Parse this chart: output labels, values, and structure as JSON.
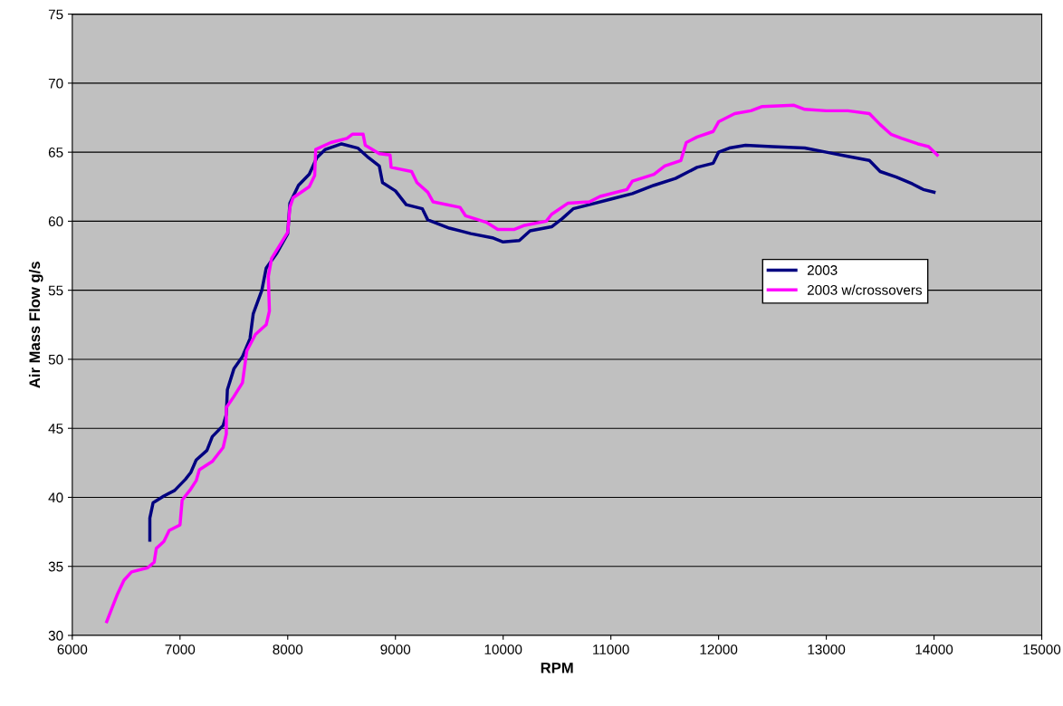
{
  "chart_data": {
    "type": "line",
    "xlabel": "RPM",
    "ylabel": "Air Mass Flow g/s",
    "xlim": [
      6000,
      15000
    ],
    "xticks": [
      6000,
      7000,
      8000,
      9000,
      10000,
      11000,
      12000,
      13000,
      14000,
      15000
    ],
    "ylim": [
      30,
      75
    ],
    "yticks": [
      30,
      35,
      40,
      45,
      50,
      55,
      60,
      65,
      70,
      75
    ],
    "grid": "y",
    "legend": "right",
    "marker": "none",
    "line_style": "solid",
    "series": [
      {
        "name": "2003",
        "color": "#000080",
        "x": [
          6720,
          6720,
          6750,
          6850,
          6950,
          7050,
          7100,
          7150,
          7250,
          7300,
          7400,
          7430,
          7440,
          7500,
          7580,
          7650,
          7680,
          7760,
          7800,
          7900,
          8000,
          8020,
          8100,
          8200,
          8270,
          8350,
          8500,
          8650,
          8750,
          8850,
          8880,
          9000,
          9100,
          9250,
          9300,
          9500,
          9700,
          9900,
          10000,
          10150,
          10250,
          10450,
          10550,
          10650,
          10800,
          11000,
          11200,
          11400,
          11600,
          11800,
          11950,
          12000,
          12100,
          12250,
          12500,
          12800,
          13000,
          13200,
          13400,
          13500,
          13650,
          13800,
          13900,
          14000
        ],
        "values": [
          36.9,
          38.5,
          39.6,
          40.1,
          40.5,
          41.3,
          41.8,
          42.7,
          43.4,
          44.4,
          45.2,
          46.0,
          47.8,
          49.3,
          50.2,
          51.5,
          53.3,
          55.0,
          56.6,
          57.7,
          59.1,
          61.3,
          62.6,
          63.4,
          64.6,
          65.2,
          65.6,
          65.3,
          64.6,
          64.0,
          62.8,
          62.2,
          61.2,
          60.9,
          60.1,
          59.5,
          59.1,
          58.8,
          58.5,
          58.6,
          59.3,
          59.6,
          60.2,
          60.9,
          61.2,
          61.6,
          62.0,
          62.6,
          63.1,
          63.9,
          64.2,
          65.0,
          65.3,
          65.5,
          65.4,
          65.3,
          65.0,
          64.7,
          64.4,
          63.6,
          63.2,
          62.7,
          62.3,
          62.1
        ]
      },
      {
        "name": "2003 w/crossovers",
        "color": "#ff00ff",
        "x": [
          6320,
          6370,
          6420,
          6480,
          6550,
          6700,
          6760,
          6780,
          6850,
          6900,
          7000,
          7020,
          7100,
          7150,
          7180,
          7300,
          7400,
          7430,
          7430,
          7500,
          7580,
          7620,
          7700,
          7800,
          7830,
          7820,
          7850,
          8000,
          8020,
          8050,
          8200,
          8250,
          8260,
          8400,
          8550,
          8600,
          8700,
          8720,
          8850,
          8950,
          8960,
          9150,
          9200,
          9300,
          9350,
          9600,
          9650,
          9850,
          9950,
          10100,
          10200,
          10400,
          10450,
          10600,
          10800,
          10900,
          11150,
          11200,
          11400,
          11500,
          11650,
          11700,
          11800,
          11950,
          12000,
          12150,
          12300,
          12400,
          12700,
          12800,
          13000,
          13200,
          13400,
          13500,
          13600,
          13700,
          13850,
          13950,
          14030
        ],
        "values": [
          31.0,
          32.0,
          33.0,
          34.0,
          34.6,
          34.9,
          35.3,
          36.3,
          36.8,
          37.6,
          38.0,
          39.8,
          40.6,
          41.2,
          42.0,
          42.6,
          43.6,
          44.6,
          46.5,
          47.3,
          48.3,
          50.6,
          51.8,
          52.5,
          53.5,
          56.0,
          57.3,
          59.2,
          61.0,
          61.7,
          62.5,
          63.3,
          65.2,
          65.7,
          66.0,
          66.3,
          66.3,
          65.5,
          64.9,
          64.8,
          63.9,
          63.6,
          62.8,
          62.1,
          61.4,
          61.0,
          60.4,
          59.9,
          59.4,
          59.4,
          59.7,
          60.0,
          60.5,
          61.3,
          61.4,
          61.8,
          62.3,
          62.9,
          63.4,
          64.0,
          64.4,
          65.7,
          66.1,
          66.5,
          67.2,
          67.8,
          68.0,
          68.3,
          68.4,
          68.1,
          68.0,
          68.0,
          67.8,
          67.0,
          66.3,
          66.0,
          65.6,
          65.4,
          64.8
        ]
      }
    ]
  }
}
